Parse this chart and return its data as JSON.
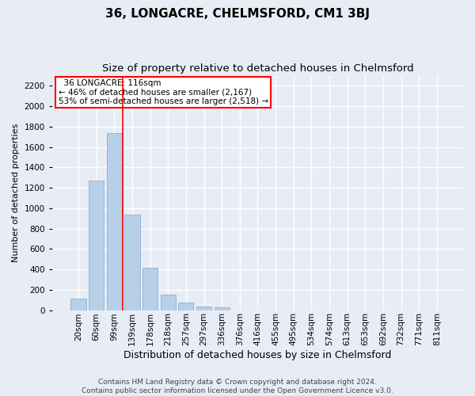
{
  "title": "36, LONGACRE, CHELMSFORD, CM1 3BJ",
  "subtitle": "Size of property relative to detached houses in Chelmsford",
  "xlabel": "Distribution of detached houses by size in Chelmsford",
  "ylabel": "Number of detached properties",
  "footer_line1": "Contains HM Land Registry data © Crown copyright and database right 2024.",
  "footer_line2": "Contains public sector information licensed under the Open Government Licence v3.0.",
  "bar_labels": [
    "20sqm",
    "60sqm",
    "99sqm",
    "139sqm",
    "178sqm",
    "218sqm",
    "257sqm",
    "297sqm",
    "336sqm",
    "376sqm",
    "416sqm",
    "455sqm",
    "495sqm",
    "534sqm",
    "574sqm",
    "613sqm",
    "653sqm",
    "692sqm",
    "732sqm",
    "771sqm",
    "811sqm"
  ],
  "bar_values": [
    110,
    1270,
    1740,
    940,
    415,
    150,
    75,
    37,
    25,
    0,
    0,
    0,
    0,
    0,
    0,
    0,
    0,
    0,
    0,
    0,
    0
  ],
  "bar_color": "#b8cfe8",
  "bar_edge_color": "#8aafd4",
  "vline_x": 2.45,
  "vline_color": "red",
  "annotation_text": "  36 LONGACRE: 116sqm\n← 46% of detached houses are smaller (2,167)\n53% of semi-detached houses are larger (2,518) →",
  "annotation_box_color": "white",
  "annotation_box_edge_color": "red",
  "ylim": [
    0,
    2300
  ],
  "yticks": [
    0,
    200,
    400,
    600,
    800,
    1000,
    1200,
    1400,
    1600,
    1800,
    2000,
    2200
  ],
  "bg_color": "#e8edf5",
  "plot_bg_color": "#e8edf5",
  "grid_color": "white",
  "title_fontsize": 11,
  "subtitle_fontsize": 9.5,
  "xlabel_fontsize": 9,
  "ylabel_fontsize": 8,
  "tick_fontsize": 7.5,
  "annotation_fontsize": 7.5,
  "footer_fontsize": 6.5
}
